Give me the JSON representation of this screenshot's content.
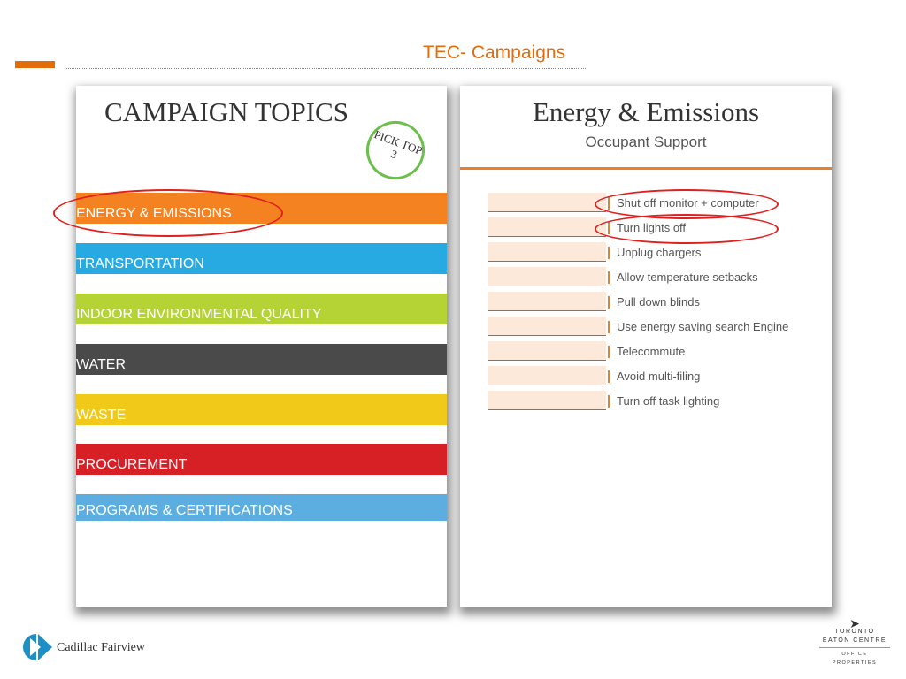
{
  "header": {
    "title": "TEC- Campaigns",
    "accent": "#e46c0a"
  },
  "left_panel": {
    "title": "CAMPAIGN TOPICS",
    "badge": "PICK TOP 3",
    "topics": [
      {
        "label": "ENERGY & EMISSIONS",
        "color": "#f58220",
        "circled": true
      },
      {
        "label": "TRANSPORTATION",
        "color": "#27aae1"
      },
      {
        "label": "INDOOR ENVIRONMENTAL QUALITY",
        "color": "#b5d334"
      },
      {
        "label": "WATER",
        "color": "#4a4a4a"
      },
      {
        "label": "WASTE",
        "color": "#f1c918"
      },
      {
        "label": "PROCUREMENT",
        "color": "#d71f26"
      },
      {
        "label": "PROGRAMS & CERTIFICATIONS",
        "color": "#5cade0"
      }
    ]
  },
  "right_panel": {
    "title": "Energy & Emissions",
    "subtitle": "Occupant Support",
    "items": [
      {
        "label": "Shut off monitor + computer",
        "circled": true
      },
      {
        "label": "Turn lights off",
        "circled": true
      },
      {
        "label": "Unplug chargers"
      },
      {
        "label": "Allow temperature setbacks"
      },
      {
        "label": "Pull down blinds"
      },
      {
        "label": "Use energy saving search Engine"
      },
      {
        "label": "Telecommute"
      },
      {
        "label": "Avoid multi-filing"
      },
      {
        "label": "Turn off task lighting"
      }
    ]
  },
  "footer": {
    "left_logo": "Cadillac Fairview",
    "right_logo": [
      "TORONTO",
      "EATON CENTRE",
      "OFFICE PROPERTIES"
    ]
  }
}
